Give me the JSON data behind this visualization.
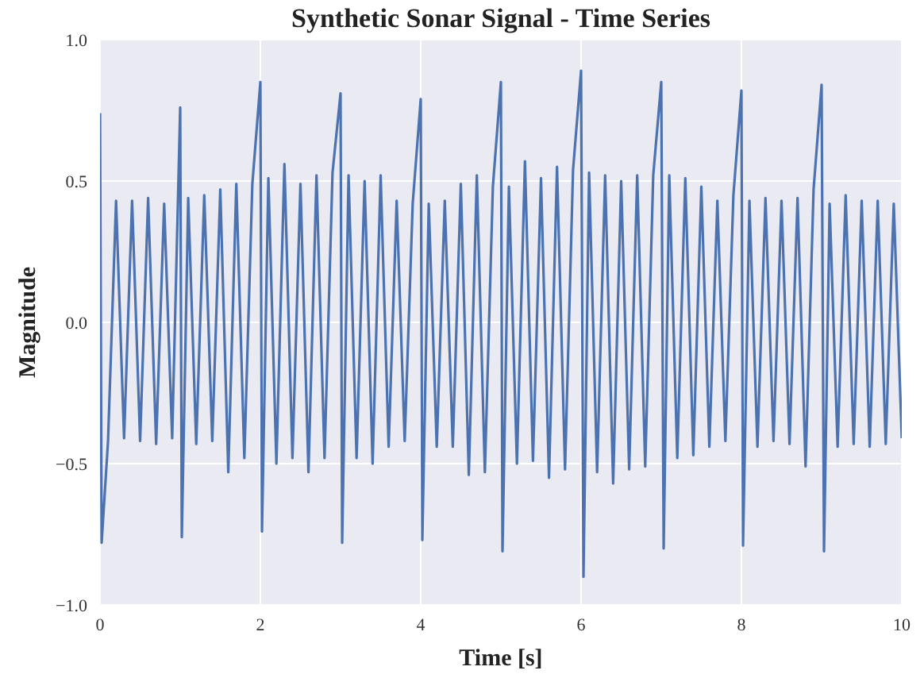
{
  "chart_data": {
    "type": "line",
    "title": "Synthetic Sonar Signal - Time Series",
    "xlabel": "Time [s]",
    "ylabel": "Magnitude",
    "xlim": [
      0,
      10
    ],
    "xticks": [
      0,
      2,
      4,
      6,
      8,
      10
    ],
    "ylim": [
      -1,
      1
    ],
    "yticks": [
      {
        "value": -1,
        "label": "−1.0"
      },
      {
        "value": -0.5,
        "label": "−0.5"
      },
      {
        "value": 0,
        "label": "0.0"
      },
      {
        "value": 0.5,
        "label": "0.5"
      },
      {
        "value": 1,
        "label": "1.0"
      }
    ],
    "grid": true,
    "marker": "none",
    "line_style": "solid",
    "series": [
      {
        "color": "#4c72b0",
        "x": [
          0,
          0.02,
          0.1,
          0.2,
          0.3,
          0.4,
          0.5,
          0.6,
          0.7,
          0.8,
          0.9,
          1.0,
          1.02,
          1.1,
          1.2,
          1.3,
          1.4,
          1.5,
          1.6,
          1.7,
          1.8,
          1.9,
          2.0,
          2.02,
          2.1,
          2.2,
          2.3,
          2.4,
          2.5,
          2.6,
          2.7,
          2.8,
          2.9,
          3.0,
          3.02,
          3.1,
          3.2,
          3.3,
          3.4,
          3.5,
          3.6,
          3.7,
          3.8,
          3.9,
          4.0,
          4.02,
          4.1,
          4.2,
          4.3,
          4.4,
          4.5,
          4.6,
          4.7,
          4.8,
          4.9,
          5.0,
          5.02,
          5.1,
          5.2,
          5.3,
          5.4,
          5.5,
          5.6,
          5.7,
          5.8,
          5.9,
          6.0,
          6.03,
          6.1,
          6.2,
          6.3,
          6.4,
          6.5,
          6.6,
          6.7,
          6.8,
          6.9,
          7.0,
          7.03,
          7.1,
          7.2,
          7.3,
          7.4,
          7.5,
          7.6,
          7.7,
          7.8,
          7.9,
          8.0,
          8.02,
          8.1,
          8.2,
          8.3,
          8.4,
          8.5,
          8.6,
          8.7,
          8.8,
          8.9,
          9.0,
          9.03,
          9.1,
          9.2,
          9.3,
          9.4,
          9.5,
          9.6,
          9.7,
          9.8,
          9.9,
          10.0
        ],
        "values": [
          0.74,
          -0.78,
          -0.42,
          0.43,
          -0.41,
          0.43,
          -0.42,
          0.44,
          -0.43,
          0.42,
          -0.41,
          0.76,
          -0.76,
          0.44,
          -0.43,
          0.45,
          -0.42,
          0.47,
          -0.53,
          0.49,
          -0.48,
          0.49,
          0.85,
          -0.74,
          0.51,
          -0.5,
          0.56,
          -0.48,
          0.49,
          -0.53,
          0.52,
          -0.48,
          0.53,
          0.81,
          -0.78,
          0.52,
          -0.48,
          0.5,
          -0.5,
          0.52,
          -0.44,
          0.43,
          -0.42,
          0.42,
          0.79,
          -0.77,
          0.42,
          -0.44,
          0.43,
          -0.44,
          0.49,
          -0.54,
          0.52,
          -0.53,
          0.48,
          0.85,
          -0.81,
          0.48,
          -0.5,
          0.57,
          -0.49,
          0.51,
          -0.55,
          0.55,
          -0.52,
          0.54,
          0.89,
          -0.9,
          0.53,
          -0.53,
          0.52,
          -0.57,
          0.5,
          -0.52,
          0.52,
          -0.51,
          0.52,
          0.85,
          -0.8,
          0.52,
          -0.48,
          0.51,
          -0.47,
          0.48,
          -0.44,
          0.43,
          -0.42,
          0.45,
          0.82,
          -0.79,
          0.43,
          -0.44,
          0.44,
          -0.42,
          0.43,
          -0.43,
          0.44,
          -0.51,
          0.47,
          0.84,
          -0.81,
          0.42,
          -0.44,
          0.45,
          -0.43,
          0.43,
          -0.44,
          0.43,
          -0.43,
          0.42,
          -0.41
        ]
      }
    ]
  }
}
